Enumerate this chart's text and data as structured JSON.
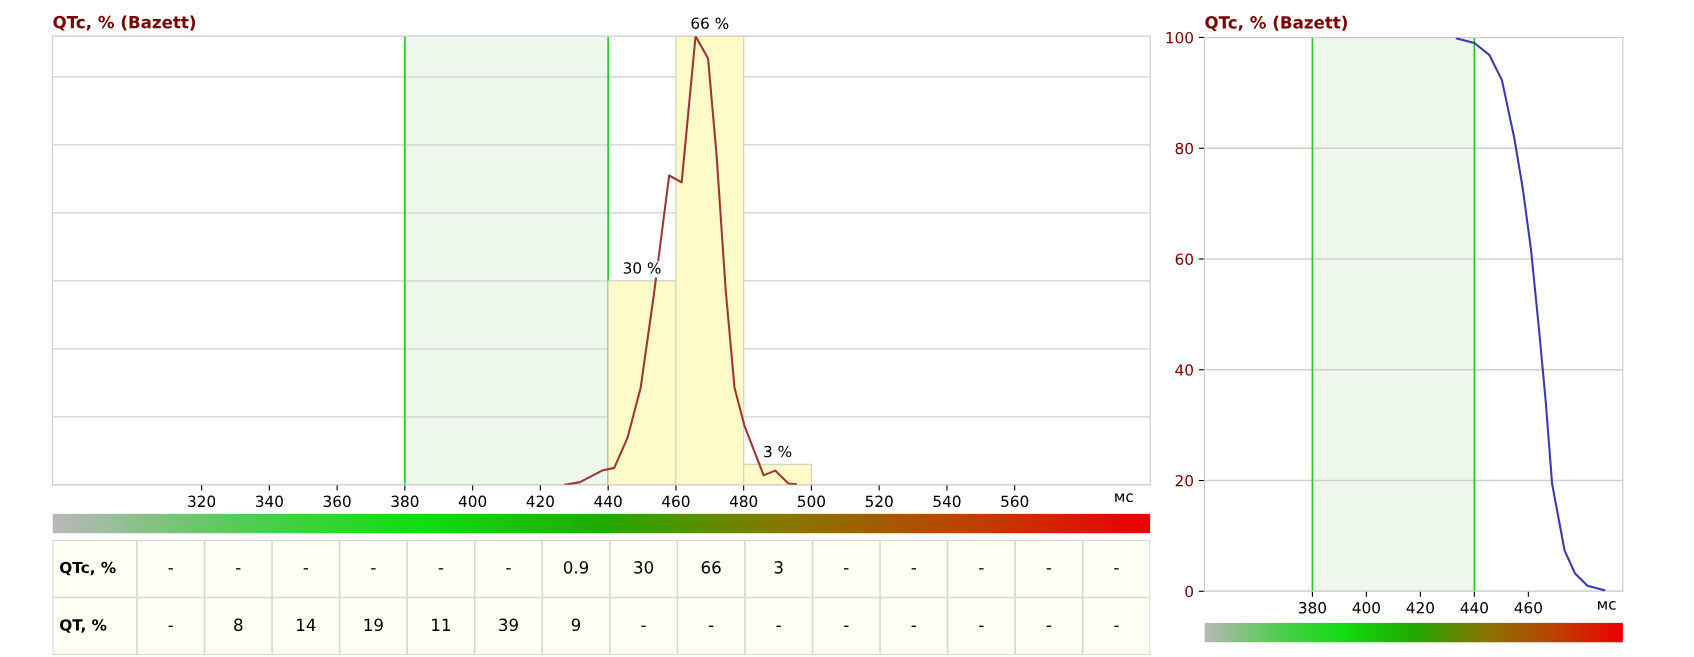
{
  "chart_data": [
    {
      "type": "histogram",
      "title": "QTc, % (Bazett)",
      "xlabel": "мс",
      "bins": [
        440,
        460,
        480,
        500
      ],
      "values": [
        30,
        66,
        3
      ],
      "value_labels": [
        "30 %",
        "66 %",
        "3 %"
      ],
      "color": "#fffbc8",
      "series": [
        {
          "type": "line",
          "color": "#a03535",
          "x": [
            427.3,
            431.7,
            438.2,
            441.8,
            445.7,
            449.6,
            453.5,
            458,
            461.7,
            465.8,
            469.5,
            472,
            474.7,
            477.3,
            480.3,
            485.9,
            489.3,
            493.2,
            495.4
          ],
          "values": [
            0,
            0.4,
            2.1,
            2.5,
            6.9,
            14.3,
            28,
            45.5,
            44.5,
            66,
            62.7,
            48.5,
            28.6,
            14.3,
            8.6,
            1.4,
            2.1,
            0.2,
            0.1
          ]
        }
      ],
      "xlim": [
        276,
        600
      ],
      "xticks": [
        320,
        340,
        360,
        380,
        400,
        420,
        440,
        460,
        480,
        500,
        520,
        540,
        560
      ],
      "bands": [
        {
          "axis": "x",
          "from": 380,
          "to": 440,
          "color": "#edf7ec"
        }
      ],
      "ref_lines": [
        {
          "axis": "x",
          "value": 380,
          "color": "#22cc22"
        },
        {
          "axis": "x",
          "value": 440,
          "color": "#22cc22"
        }
      ],
      "grid": "y",
      "tick_labels": "x"
    },
    {
      "type": "other",
      "categories": [
        null,
        null,
        null,
        null,
        null,
        null,
        null,
        null,
        null,
        null,
        null,
        null,
        null,
        null,
        null
      ],
      "annotations": [
        "QTc, %",
        "-",
        "-",
        "-",
        "-",
        "-",
        "-",
        "0.9",
        "30",
        "66",
        "3",
        "-",
        "-",
        "-",
        "-",
        "-",
        "QT, %",
        "-",
        "8",
        "14",
        "19",
        "11",
        "39",
        "9",
        "-",
        "-",
        "-",
        "-",
        "-",
        "-",
        "-",
        "-"
      ]
    },
    {
      "type": "line",
      "title": "QTc, % (Bazett)",
      "xlabel": "мс",
      "series": [
        {
          "color": "#3a3ab0",
          "x": [
            433.5,
            440,
            445.6,
            450.2,
            454.8,
            457.9,
            461,
            464.1,
            466.4,
            468.8,
            473.4,
            477.3,
            481.9,
            488.1
          ],
          "values": [
            99.8,
            99,
            96.8,
            92.3,
            81.8,
            72.8,
            61.6,
            46.5,
            34.4,
            19.4,
            7.4,
            3.2,
            1,
            0.2
          ]
        }
      ],
      "xlim": [
        340,
        495
      ],
      "xticks": [
        380,
        400,
        420,
        440,
        460
      ],
      "ylim": [
        0,
        100
      ],
      "yticks": [
        0,
        20,
        40,
        60,
        80,
        100
      ],
      "bands": [
        {
          "axis": "x",
          "from": 380,
          "to": 440,
          "color": "#edf7ec"
        }
      ],
      "ref_lines": [
        {
          "axis": "x",
          "value": 380,
          "color": "#22cc22"
        },
        {
          "axis": "x",
          "value": 440,
          "color": "#22cc22"
        }
      ],
      "grid": "y"
    }
  ]
}
